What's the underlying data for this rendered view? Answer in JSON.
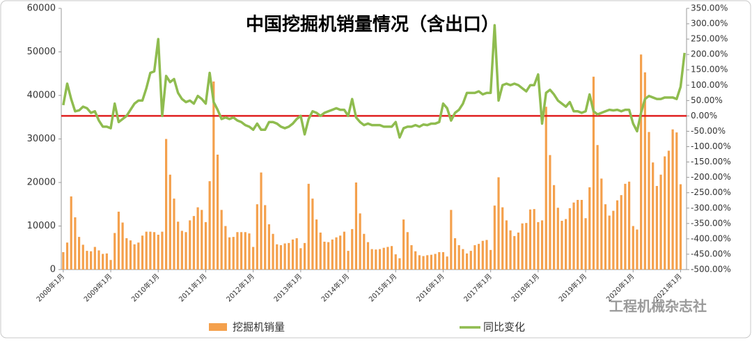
{
  "chart_data": {
    "type": "bar",
    "title": "中国挖掘机销量情况（含出口）",
    "watermark": "工程机械杂志社",
    "categories": [
      "2008年1月",
      null,
      null,
      null,
      null,
      null,
      null,
      null,
      null,
      null,
      null,
      null,
      "2009年1月",
      null,
      null,
      null,
      null,
      null,
      null,
      null,
      null,
      null,
      null,
      null,
      "2010年1月",
      null,
      null,
      null,
      null,
      null,
      null,
      null,
      null,
      null,
      null,
      null,
      "2011年1月",
      null,
      null,
      null,
      null,
      null,
      null,
      null,
      null,
      null,
      null,
      null,
      "2012年1月",
      null,
      null,
      null,
      null,
      null,
      null,
      null,
      null,
      null,
      null,
      null,
      "2013年1月",
      null,
      null,
      null,
      null,
      null,
      null,
      null,
      null,
      null,
      null,
      null,
      "2014年1月",
      null,
      null,
      null,
      null,
      null,
      null,
      null,
      null,
      null,
      null,
      null,
      "2015年1月",
      null,
      null,
      null,
      null,
      null,
      null,
      null,
      null,
      null,
      null,
      null,
      "2016年1月",
      null,
      null,
      null,
      null,
      null,
      null,
      null,
      null,
      null,
      null,
      null,
      "2017年1月",
      null,
      null,
      null,
      null,
      null,
      null,
      null,
      null,
      null,
      null,
      null,
      "2018年1月",
      null,
      null,
      null,
      null,
      null,
      null,
      null,
      null,
      null,
      null,
      null,
      "2019年1月",
      null,
      null,
      null,
      null,
      null,
      null,
      null,
      null,
      null,
      null,
      null,
      "2020年1月",
      null,
      null,
      null,
      null,
      null,
      null,
      null,
      null,
      null,
      null,
      null,
      "2021年1月",
      null
    ],
    "series": [
      {
        "name": "挖掘机销量",
        "type": "bar",
        "color": "#f4a04c",
        "values": [
          4000,
          6200,
          16800,
          12000,
          7500,
          5700,
          4300,
          4200,
          5200,
          4400,
          3600,
          3700,
          2200,
          8400,
          13300,
          10800,
          7200,
          6700,
          5800,
          6200,
          7800,
          8700,
          8700,
          8600,
          8000,
          8700,
          30000,
          21800,
          16300,
          11000,
          8900,
          8600,
          11300,
          12300,
          14300,
          13700,
          10900,
          20300,
          43200,
          26400,
          13700,
          10000,
          7400,
          7500,
          8600,
          8600,
          8600,
          8300,
          5200,
          15000,
          22300,
          14800,
          10400,
          8200,
          5800,
          5600,
          6000,
          6100,
          6900,
          7200,
          4900,
          6100,
          19700,
          16300,
          11500,
          8500,
          6400,
          6300,
          6900,
          7400,
          7800,
          8700,
          4300,
          9300,
          20000,
          12900,
          8200,
          6300,
          4700,
          4600,
          4700,
          5000,
          5200,
          5400,
          3500,
          2600,
          11500,
          8600,
          5600,
          4200,
          3300,
          3100,
          3300,
          3400,
          3600,
          4000,
          4000,
          3000,
          13700,
          7200,
          5600,
          4700,
          3700,
          4300,
          5600,
          5900,
          6600,
          6800,
          4500,
          14700,
          21200,
          14300,
          11300,
          9000,
          7700,
          8500,
          10600,
          10700,
          13800,
          13900,
          10900,
          11300,
          37400,
          26300,
          19400,
          14200,
          11200,
          11600,
          14100,
          15400,
          16000,
          16000,
          11800,
          18900,
          44300,
          28600,
          20900,
          15000,
          12400,
          13500,
          15900,
          17100,
          19700,
          20200,
          10000,
          9200,
          49400,
          45300,
          31600,
          24600,
          19200,
          21800,
          26000,
          27300,
          32200,
          31500,
          19600,
          null
        ]
      },
      {
        "name": "同比变化",
        "type": "line",
        "axis": "y2",
        "color": "#8fbc4f",
        "values": [
          35,
          105,
          55,
          15,
          18,
          30,
          25,
          10,
          15,
          -15,
          -35,
          -35,
          -40,
          40,
          -20,
          -10,
          0,
          20,
          40,
          50,
          50,
          90,
          140,
          145,
          250,
          0,
          130,
          110,
          120,
          75,
          55,
          45,
          50,
          40,
          65,
          55,
          40,
          140,
          45,
          20,
          -10,
          -5,
          -10,
          -5,
          -15,
          -20,
          -30,
          -35,
          -45,
          -25,
          -45,
          -45,
          -20,
          -20,
          -25,
          -35,
          -40,
          -35,
          -25,
          -10,
          0,
          -60,
          -10,
          15,
          10,
          0,
          10,
          15,
          20,
          25,
          20,
          20,
          0,
          55,
          -5,
          -20,
          -30,
          -25,
          -30,
          -30,
          -30,
          -35,
          -35,
          -35,
          -20,
          -70,
          -40,
          -35,
          -35,
          -30,
          -35,
          -28,
          -30,
          -25,
          -25,
          -20,
          40,
          25,
          -15,
          10,
          20,
          40,
          75,
          75,
          75,
          80,
          70,
          75,
          75,
          295,
          50,
          100,
          105,
          100,
          105,
          100,
          90,
          80,
          100,
          100,
          135,
          -25,
          75,
          85,
          70,
          50,
          40,
          30,
          45,
          15,
          15,
          10,
          15,
          70,
          15,
          5,
          10,
          15,
          20,
          18,
          20,
          15,
          20,
          20,
          -25,
          -50,
          10,
          55,
          65,
          60,
          55,
          55,
          60,
          60,
          60,
          55,
          95,
          205
        ]
      }
    ],
    "ylim": [
      0,
      60000
    ],
    "yticks": [
      0,
      10000,
      20000,
      30000,
      40000,
      50000,
      60000
    ],
    "y2lim": [
      -500,
      350
    ],
    "y2ticks": [
      {
        "value": -500,
        "label": "-500.00%"
      },
      {
        "value": -450,
        "label": "-450.00%"
      },
      {
        "value": -400,
        "label": "-400.00%"
      },
      {
        "value": -350,
        "label": "-350.00%"
      },
      {
        "value": -300,
        "label": "-300.00%"
      },
      {
        "value": -250,
        "label": "-250.00%"
      },
      {
        "value": -200,
        "label": "-200.00%"
      },
      {
        "value": -150,
        "label": "-150.00%"
      },
      {
        "value": -100,
        "label": "-100.00%"
      },
      {
        "value": -50,
        "label": "-50.00%"
      },
      {
        "value": 0,
        "label": "0.00%"
      },
      {
        "value": 50,
        "label": "50.00%"
      },
      {
        "value": 100,
        "label": "100.00%"
      },
      {
        "value": 150,
        "label": "150.00%"
      },
      {
        "value": 200,
        "label": "200.00%"
      },
      {
        "value": 250,
        "label": "250.00%"
      },
      {
        "value": 300,
        "label": "300.00%"
      },
      {
        "value": 350,
        "label": "350.00%"
      }
    ],
    "reference_line": {
      "axis": "y2",
      "value": 0,
      "color": "#e02020"
    },
    "legend": "bottom"
  }
}
